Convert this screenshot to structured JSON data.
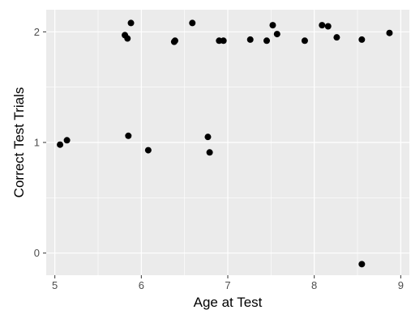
{
  "chart_data": {
    "type": "scatter",
    "xlabel": "Age at Test",
    "ylabel": "Correct Test Trials",
    "xlim": [
      4.9,
      9.1
    ],
    "ylim": [
      -0.2,
      2.2
    ],
    "x_ticks": [
      5,
      6,
      7,
      8,
      9
    ],
    "y_ticks": [
      0,
      1,
      2
    ],
    "x_tick_labels": [
      "5",
      "6",
      "7",
      "8",
      "9"
    ],
    "y_tick_labels": [
      "0",
      "1",
      "2"
    ],
    "grid": true,
    "colors": {
      "panel_background": "#ebebeb",
      "grid_major": "#ffffff",
      "point": "#000000",
      "tick_text": "#4d4d4d"
    },
    "points": [
      {
        "x": 5.06,
        "y": 0.98
      },
      {
        "x": 5.14,
        "y": 1.02
      },
      {
        "x": 5.81,
        "y": 1.97
      },
      {
        "x": 5.84,
        "y": 1.94
      },
      {
        "x": 5.85,
        "y": 1.06
      },
      {
        "x": 5.88,
        "y": 2.08
      },
      {
        "x": 6.08,
        "y": 0.93
      },
      {
        "x": 6.38,
        "y": 1.91
      },
      {
        "x": 6.39,
        "y": 1.92
      },
      {
        "x": 6.59,
        "y": 2.08
      },
      {
        "x": 6.77,
        "y": 1.05
      },
      {
        "x": 6.79,
        "y": 0.91
      },
      {
        "x": 6.9,
        "y": 1.92
      },
      {
        "x": 6.95,
        "y": 1.92
      },
      {
        "x": 7.26,
        "y": 1.93
      },
      {
        "x": 7.45,
        "y": 1.92
      },
      {
        "x": 7.52,
        "y": 2.06
      },
      {
        "x": 7.57,
        "y": 1.98
      },
      {
        "x": 7.89,
        "y": 1.92
      },
      {
        "x": 8.09,
        "y": 2.06
      },
      {
        "x": 8.16,
        "y": 2.05
      },
      {
        "x": 8.26,
        "y": 1.95
      },
      {
        "x": 8.55,
        "y": 1.93
      },
      {
        "x": 8.55,
        "y": -0.1
      },
      {
        "x": 8.87,
        "y": 1.99
      }
    ]
  }
}
